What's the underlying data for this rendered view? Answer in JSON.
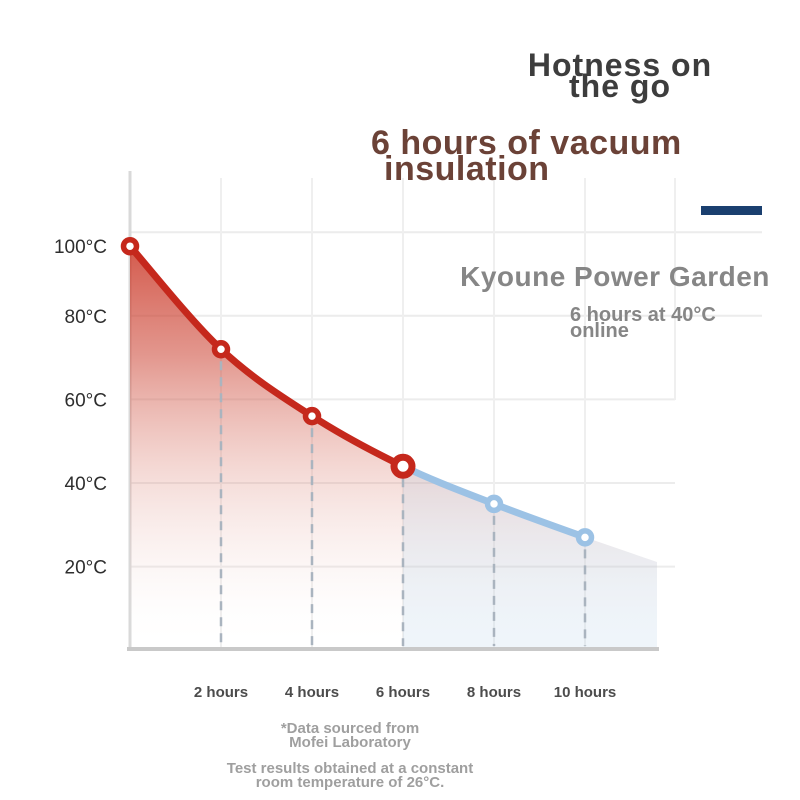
{
  "header": {
    "title_line1": "Hotness on",
    "title_line2": "the go",
    "subtitle_line1": "6 hours of vacuum",
    "subtitle_line2": "insulation"
  },
  "brand": {
    "name": "Kyoune Power Garden",
    "tagline_line1": "6 hours at 40°C",
    "tagline_line2": "online",
    "accent_bar_color": "#1a3f6f"
  },
  "footnotes": {
    "source_line1": "*Data sourced from",
    "source_line2": "Mofei Laboratory",
    "conditions_line1": "Test results obtained at a constant",
    "conditions_line2": "room temperature of 26°C."
  },
  "colors": {
    "hot_line": "#c5281c",
    "cool_line": "#9cc2e5",
    "accent_bar": "#1a3f6f",
    "title_text": "#3d3d3d",
    "subtitle_text": "#6b4237",
    "brand_text": "#868686",
    "footnote_text": "#9f9f9f"
  },
  "chart_data": {
    "type": "line",
    "x_hours": [
      0,
      2,
      4,
      6,
      8,
      10
    ],
    "temperatures_c": [
      100,
      72,
      56,
      44,
      35,
      27
    ],
    "series": [
      {
        "id": "red-segment",
        "color": "#c5281c",
        "x_hours": [
          0,
          2,
          4,
          6
        ],
        "values": [
          100,
          72,
          56,
          44
        ]
      },
      {
        "id": "blue-segment",
        "color": "#9cc2e5",
        "x_hours": [
          6,
          8,
          10
        ],
        "values": [
          44,
          35,
          27
        ]
      }
    ],
    "highlight_point": {
      "x_hours": 6,
      "temperature_c": 44
    },
    "ytick_labels": [
      "100°C",
      "80°C",
      "60°C",
      "40°C",
      "20°C"
    ],
    "ytick_values": [
      100,
      80,
      60,
      40,
      20
    ],
    "xtick_labels": [
      "2 hours",
      "4 hours",
      "6 hours",
      "8 hours",
      "10 hours"
    ],
    "xtick_values": [
      2,
      4,
      6,
      8,
      10
    ],
    "ylim": [
      0,
      105
    ],
    "xlim": [
      0,
      11.5
    ],
    "grid": true,
    "legend": false,
    "fill": "red-gradient-fade-to-white",
    "guide_lines": "dashed-vertical-below-each-point"
  }
}
